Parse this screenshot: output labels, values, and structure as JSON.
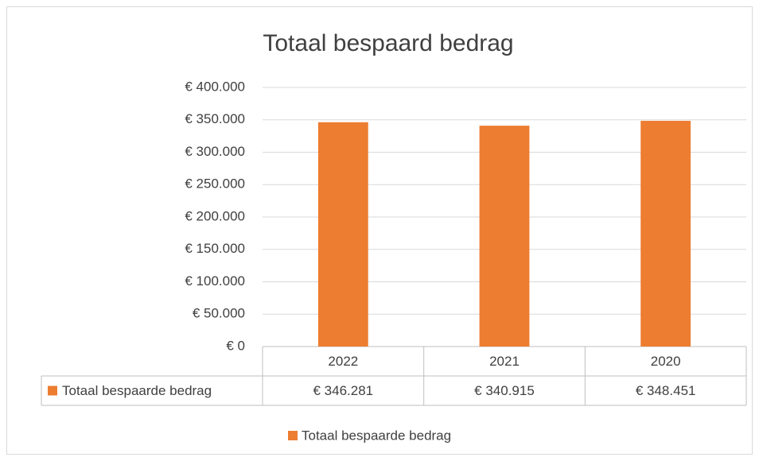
{
  "chart_data": {
    "type": "bar",
    "title": "Totaal bespaard bedrag",
    "categories": [
      "2022",
      "2021",
      "2020"
    ],
    "series": [
      {
        "name": "Totaal bespaarde bedrag",
        "color": "#ed7d31",
        "values": [
          346281,
          340915,
          348451
        ],
        "value_labels": [
          "€ 346.281",
          "€ 340.915",
          "€ 348.451"
        ]
      }
    ],
    "ylim": [
      0,
      400000
    ],
    "yticks": [
      {
        "value": 0,
        "label": "€ 0"
      },
      {
        "value": 50000,
        "label": "€ 50.000"
      },
      {
        "value": 100000,
        "label": "€ 100.000"
      },
      {
        "value": 150000,
        "label": "€ 150.000"
      },
      {
        "value": 200000,
        "label": "€ 200.000"
      },
      {
        "value": 250000,
        "label": "€ 250.000"
      },
      {
        "value": 300000,
        "label": "€ 300.000"
      },
      {
        "value": 350000,
        "label": "€ 350.000"
      },
      {
        "value": 400000,
        "label": "€ 400.000"
      }
    ],
    "grid": true,
    "legend": "bottom"
  }
}
